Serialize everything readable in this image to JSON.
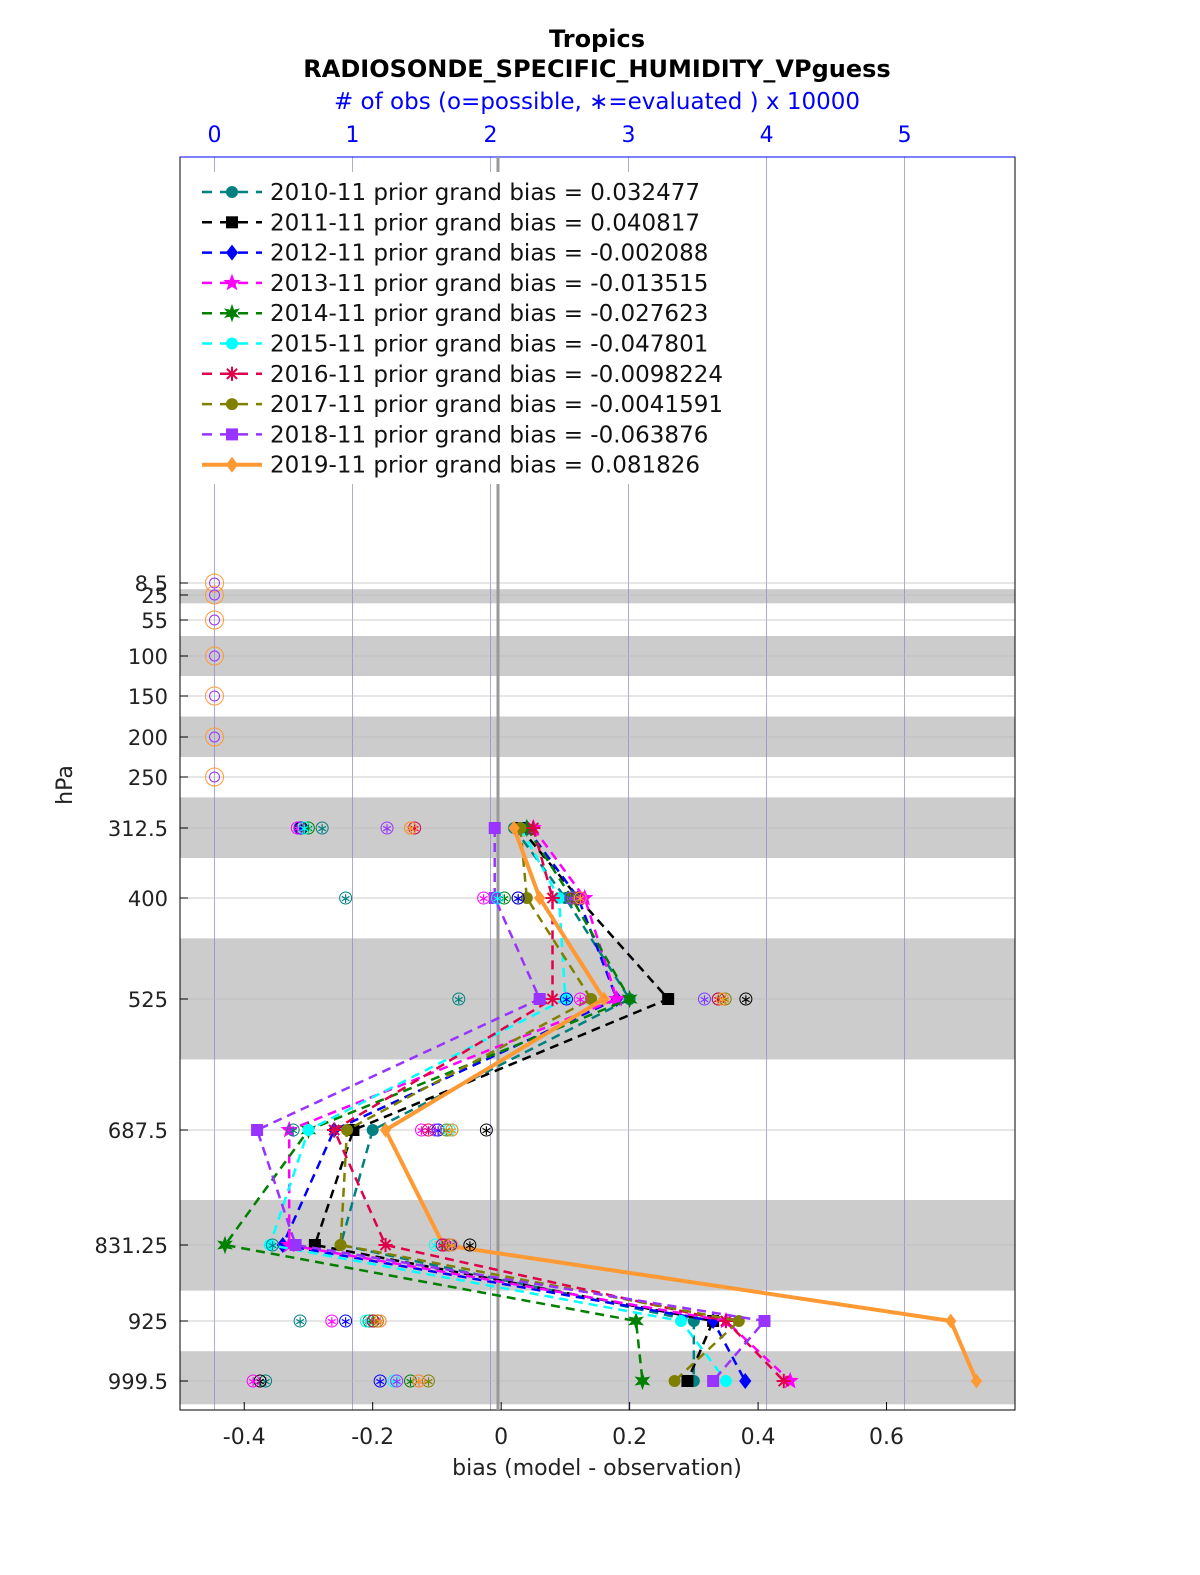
{
  "chart_data": {
    "type": "line",
    "title": "Tropics",
    "subtitle": "RADIOSONDE_SPECIFIC_HUMIDITY_VPguess",
    "top_axis_label": "# of obs (o=possible, ∗=evaluated ) x 10000",
    "xlabel": "bias (model - observation)",
    "ylabel": "hPa",
    "xlim": [
      -0.5,
      0.8
    ],
    "top_xlim": [
      -0.25,
      5.8
    ],
    "x_ticks": [
      "-0.4",
      "-0.2",
      "0",
      "0.2",
      "0.4",
      "0.6"
    ],
    "x_tick_values": [
      -0.4,
      -0.2,
      0,
      0.2,
      0.4,
      0.6
    ],
    "top_ticks": [
      "0",
      "1",
      "2",
      "3",
      "4",
      "5"
    ],
    "top_tick_values": [
      0,
      1,
      2,
      3,
      4,
      5
    ],
    "y_ticks": [
      "8.5",
      "25",
      "55",
      "100",
      "150",
      "200",
      "250",
      "312.5",
      "400",
      "525",
      "687.5",
      "831.25",
      "925",
      "999.5"
    ],
    "y_tick_values": [
      8.5,
      25,
      55,
      100,
      150,
      200,
      250,
      312.5,
      400,
      525,
      687.5,
      831.25,
      925,
      999.5
    ],
    "shaded_layers_hpa": [
      [
        17,
        35
      ],
      [
        75,
        125
      ],
      [
        175,
        225
      ],
      [
        275,
        350
      ],
      [
        450,
        600
      ],
      [
        775,
        887.5
      ],
      [
        962.5,
        1037.5
      ]
    ],
    "levels": [
      312.5,
      400,
      525,
      687.5,
      831.25,
      925,
      999.5
    ],
    "grid": true,
    "legend_position": "top-left",
    "series": [
      {
        "name": "2010-11 prior grand bias = 0.032477",
        "color": "#008080",
        "marker": "circle",
        "bias": [
          0.02,
          0.1,
          0.2,
          -0.2,
          -0.25,
          0.3,
          0.3
        ],
        "obs_possible": [
          0.78,
          0.95,
          1.77,
          0.57,
          0.42,
          0.62,
          0.37
        ],
        "obs_used": [
          0.76,
          0.95,
          1.76,
          0.57,
          0.42,
          0.62,
          0.37
        ]
      },
      {
        "name": "2011-11 prior grand bias = 0.040817",
        "color": "#000000",
        "marker": "square",
        "bias": [
          0.03,
          0.12,
          0.26,
          -0.23,
          -0.29,
          0.33,
          0.29
        ],
        "obs_possible": [
          0.63,
          2.2,
          3.85,
          1.97,
          1.85,
          1.15,
          0.33
        ],
        "obs_used": [
          0.63,
          2.2,
          3.85,
          1.97,
          1.85,
          1.15,
          0.33
        ]
      },
      {
        "name": "2012-11 prior grand bias = -0.002088",
        "color": "#0000ff",
        "marker": "diamond",
        "bias": [
          0.04,
          0.12,
          0.18,
          -0.26,
          -0.34,
          0.33,
          0.38
        ],
        "obs_possible": [
          0.62,
          2.2,
          2.55,
          1.62,
          1.71,
          0.95,
          1.2
        ],
        "obs_used": [
          0.62,
          2.2,
          2.55,
          1.62,
          1.71,
          0.95,
          1.2
        ]
      },
      {
        "name": "2013-11 prior grand bias = -0.013515",
        "color": "#ff00ff",
        "marker": "star",
        "bias": [
          0.05,
          0.13,
          0.18,
          -0.33,
          -0.33,
          0.35,
          0.45
        ],
        "obs_possible": [
          0.6,
          1.95,
          2.65,
          1.5,
          1.67,
          0.85,
          0.28
        ],
        "obs_used": [
          0.6,
          1.95,
          2.65,
          1.5,
          1.67,
          0.85,
          0.28
        ]
      },
      {
        "name": "2014-11 prior grand bias = -0.027623",
        "color": "#008000",
        "marker": "hexagram",
        "bias": [
          0.04,
          0.11,
          0.2,
          -0.3,
          -0.43,
          0.21,
          0.22
        ],
        "obs_possible": [
          0.68,
          2.1,
          3.65,
          1.72,
          1.65,
          1.12,
          1.42
        ],
        "obs_used": [
          0.68,
          2.1,
          3.65,
          1.72,
          1.65,
          1.12,
          1.42
        ]
      },
      {
        "name": "2015-11 prior grand bias = -0.047801",
        "color": "#00ffff",
        "marker": "circle",
        "bias": [
          0.03,
          0.09,
          0.1,
          -0.3,
          -0.36,
          0.28,
          0.35
        ],
        "obs_possible": [
          0.65,
          2.05,
          3.55,
          1.7,
          1.6,
          1.1,
          1.3
        ],
        "obs_used": [
          0.65,
          2.05,
          3.55,
          1.7,
          1.6,
          1.1,
          1.3
        ]
      },
      {
        "name": "2016-11 prior grand bias = -0.0098224",
        "color": "#e0004a",
        "marker": "asterisk",
        "bias": [
          0.05,
          0.08,
          0.08,
          -0.26,
          -0.18,
          0.35,
          0.44
        ],
        "obs_possible": [
          1.45,
          2.62,
          3.65,
          1.55,
          1.65,
          1.15,
          1.48
        ],
        "obs_used": [
          1.45,
          2.62,
          3.65,
          1.55,
          1.65,
          1.15,
          1.48
        ]
      },
      {
        "name": "2017-11 prior grand bias = -0.0041591",
        "color": "#808000",
        "marker": "circle",
        "bias": [
          0.03,
          0.04,
          0.14,
          -0.24,
          -0.25,
          0.37,
          0.27
        ],
        "obs_possible": [
          1.42,
          2.6,
          3.7,
          1.68,
          1.7,
          1.18,
          1.55
        ],
        "obs_used": [
          1.42,
          2.6,
          3.7,
          1.68,
          1.7,
          1.18,
          1.55
        ]
      },
      {
        "name": "2018-11 prior grand bias = -0.063876",
        "color": "#9933ff",
        "marker": "square",
        "bias": [
          -0.01,
          -0.01,
          0.06,
          -0.38,
          -0.32,
          0.41,
          0.33
        ],
        "obs_possible": [
          1.25,
          2.58,
          3.55,
          1.6,
          1.72,
          1.2,
          1.32
        ],
        "obs_used": [
          1.25,
          2.58,
          3.55,
          1.6,
          1.72,
          1.2,
          1.32
        ]
      },
      {
        "name": "2019-11 prior grand bias = 0.081826",
        "color": "#ff9933",
        "marker": "diamond",
        "bias": [
          0.02,
          0.06,
          0.16,
          -0.18,
          -0.09,
          0.7,
          0.74
        ],
        "obs_possible": [
          1.42,
          2.65,
          3.68,
          1.72,
          1.72,
          1.2,
          1.48
        ],
        "obs_used": [
          1.42,
          2.65,
          3.68,
          1.72,
          1.72,
          1.2,
          1.48
        ]
      }
    ],
    "top_level_obs_possible": [
      0,
      0,
      0,
      0,
      0,
      0,
      0
    ],
    "top_level_hpa": [
      8.5,
      25,
      55,
      100,
      150,
      200,
      250
    ]
  }
}
